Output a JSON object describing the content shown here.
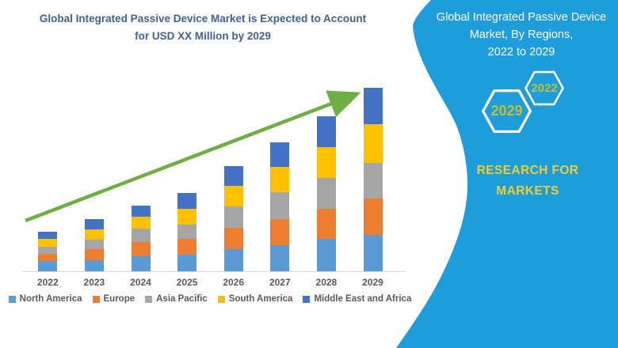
{
  "left_section": {
    "title_lines": [
      "Global Integrated Passive Device Market is Expected to Account",
      "for USD XX Million by 2029"
    ],
    "title_color": "#44608f",
    "arrow_color": "#6fae44",
    "axis_line_color": "#d9d9d9",
    "category_label_color": "#595959"
  },
  "chart_data": {
    "type": "bar",
    "stacked": true,
    "title": "Global Integrated Passive Device Market is Expected to Account for USD XX Million by 2029",
    "xlabel": "",
    "ylabel": "",
    "y_axis_labels_visible": false,
    "ylim": [
      0,
      240
    ],
    "grid": false,
    "legend_position": "bottom",
    "annotations": [
      "green upward growth trend arrow from 2022 bar to 2029 bar"
    ],
    "categories": [
      "2022",
      "2023",
      "2024",
      "2025",
      "2026",
      "2027",
      "2028",
      "2029"
    ],
    "series": [
      {
        "name": "North America",
        "color": "#5B9BD5",
        "values": [
          13,
          14,
          19,
          21,
          28,
          33,
          41,
          46
        ]
      },
      {
        "name": "Europe",
        "color": "#ED7D31",
        "values": [
          9,
          14,
          18,
          20,
          27,
          33,
          38,
          46
        ]
      },
      {
        "name": "Asia Pacific",
        "color": "#A5A5A5",
        "values": [
          9,
          12,
          17,
          18,
          27,
          34,
          39,
          45
        ]
      },
      {
        "name": "South America",
        "color": "#FFC000",
        "values": [
          10,
          13,
          15,
          20,
          26,
          32,
          39,
          49
        ]
      },
      {
        "name": "Middle East and Africa",
        "color": "#4472C4",
        "values": [
          9,
          13,
          14,
          20,
          25,
          31,
          39,
          46
        ]
      }
    ],
    "totals": [
      50,
      66,
      83,
      99,
      133,
      163,
      196,
      232
    ]
  },
  "right_panel": {
    "background_color": "#1d9dd9",
    "heading_lines": [
      "Global Integrated Passive Device",
      "Market, By Regions,",
      "2022 to 2029"
    ],
    "heading_color": "#ffffff",
    "hexagons": [
      {
        "label": "2029",
        "size": "large"
      },
      {
        "label": "2022",
        "size": "small"
      }
    ],
    "hexagon_year_color": "#b9c23f",
    "brand_lines": [
      "RESEARCH FOR",
      "MARKETS"
    ],
    "brand_color": "#f2cf2e"
  }
}
